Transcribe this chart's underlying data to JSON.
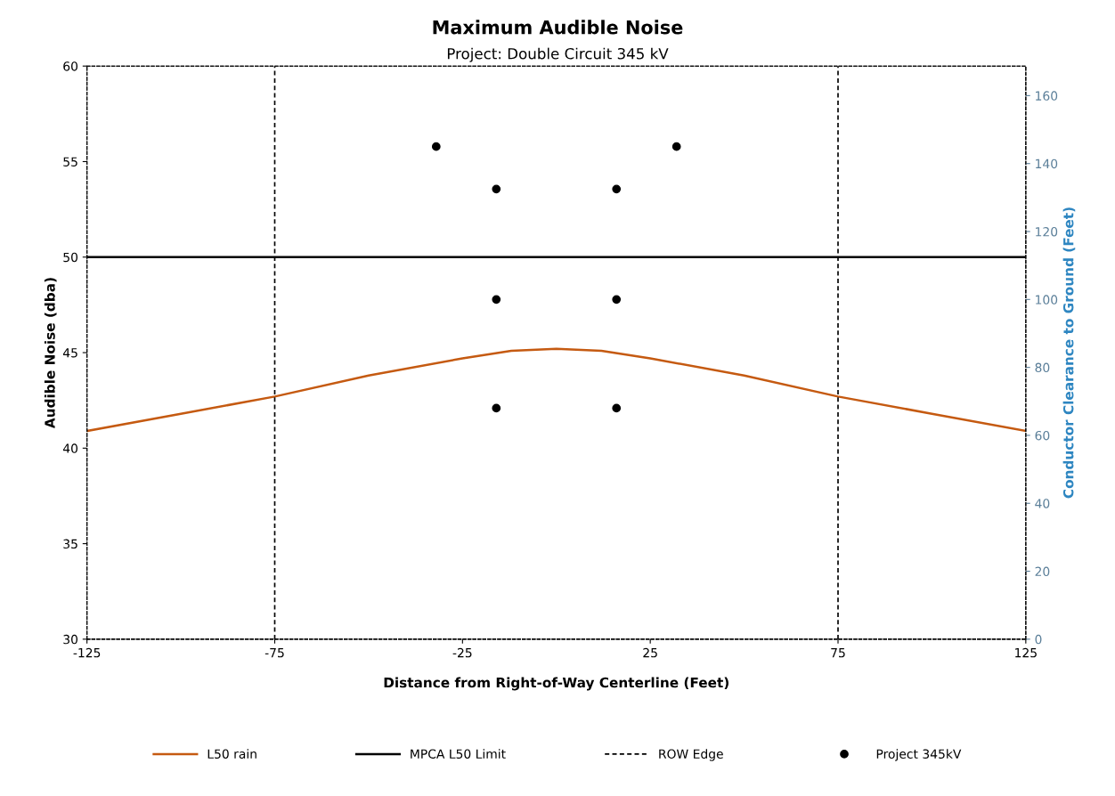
{
  "chart_data": {
    "type": "line",
    "title": "Maximum Audible Noise",
    "subtitle": "Project: Double Circuit 345 kV",
    "xlabel": "Distance from Right-of-Way Centerline (Feet)",
    "ylabel": "Audible Noise (dba)",
    "y2label": "Conductor Clearance to Ground (Feet)",
    "xlim": [
      -125,
      125
    ],
    "xticks": [
      -125,
      -75,
      -25,
      25,
      75,
      125
    ],
    "ylim": [
      30,
      60
    ],
    "yticks": [
      30,
      35,
      40,
      45,
      50,
      55,
      60
    ],
    "y2lim": [
      0,
      168.7
    ],
    "y2ticks": [
      0,
      20,
      40,
      60,
      80,
      100,
      120,
      140,
      160
    ],
    "grid": false,
    "legend": "bottom",
    "series": [
      {
        "name": "L50 rain",
        "color": "#c55a11",
        "x": [
          -125,
          -100,
          -75,
          -50,
          -25,
          -12,
          0,
          12,
          25,
          50,
          75,
          100,
          125
        ],
        "values": [
          40.9,
          41.8,
          42.7,
          43.8,
          44.7,
          45.1,
          45.2,
          45.1,
          44.7,
          43.8,
          42.7,
          41.8,
          40.9
        ]
      },
      {
        "name": "MPCA L50 Limit",
        "color": "#000000",
        "x": [
          -125,
          125
        ],
        "values": [
          50,
          50
        ]
      },
      {
        "name": "Project 345kV",
        "type": "scatter",
        "axis": "y2",
        "marker": "circle",
        "color": "#000000",
        "x": [
          -32,
          32,
          -16,
          16,
          -16,
          16,
          -16,
          16
        ],
        "values": [
          145,
          145,
          132.5,
          132.5,
          100,
          100,
          68,
          68
        ]
      }
    ],
    "ref_lines": [
      {
        "axis": "x",
        "value": -75,
        "label": "ROW Edge",
        "color": "#000000",
        "line_style": "dashed"
      },
      {
        "axis": "x",
        "value": 75,
        "color": "#000000",
        "line_style": "dashed"
      }
    ]
  }
}
